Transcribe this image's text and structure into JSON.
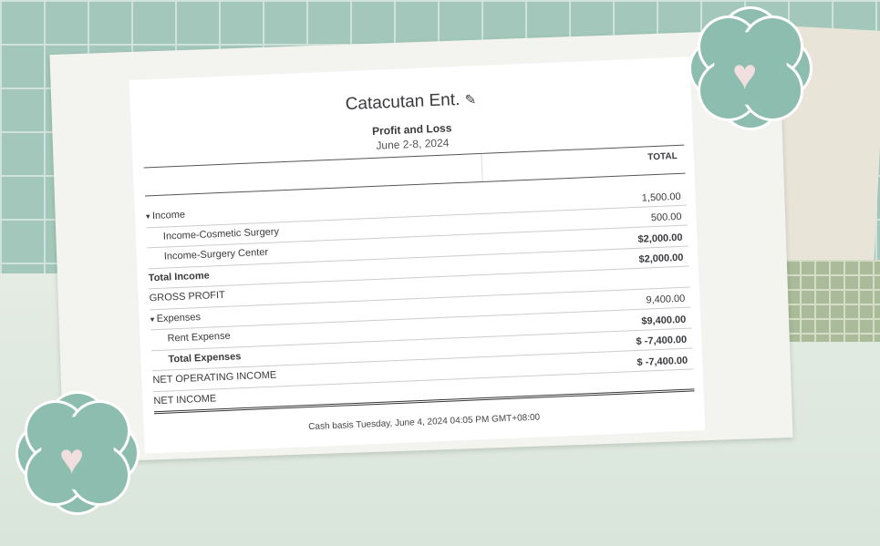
{
  "report": {
    "company": "Catacutan Ent.",
    "title": "Profit and Loss",
    "period": "June 2-8, 2024",
    "column_header": "TOTAL",
    "rows": [
      {
        "label": "Income",
        "value": "",
        "type": "section"
      },
      {
        "label": "Income-Cosmetic Surgery",
        "value": "1,500.00",
        "type": "item"
      },
      {
        "label": "Income-Surgery Center",
        "value": "500.00",
        "type": "item"
      },
      {
        "label": "Total Income",
        "value": "$2,000.00",
        "type": "total"
      },
      {
        "label": "GROSS PROFIT",
        "value": "$2,000.00",
        "type": "summary"
      },
      {
        "label": "Expenses",
        "value": "",
        "type": "section"
      },
      {
        "label": "Rent Expense",
        "value": "9,400.00",
        "type": "item"
      },
      {
        "label": "Total Expenses",
        "value": "$9,400.00",
        "type": "total"
      },
      {
        "label": "NET OPERATING INCOME",
        "value": "$ -7,400.00",
        "type": "summary"
      },
      {
        "label": "NET INCOME",
        "value": "$ -7,400.00",
        "type": "summary"
      }
    ],
    "footer": "Cash basis  Tuesday, June 4, 2024  04:05 PM GMT+08:00"
  },
  "icons": {
    "edit": "pencil-icon",
    "collapse": "caret-down-icon",
    "decor": "heart-icon"
  },
  "colors": {
    "background_grid": "#a3c8bb",
    "flower": "#8dbdae",
    "heart": "#f1dede"
  }
}
